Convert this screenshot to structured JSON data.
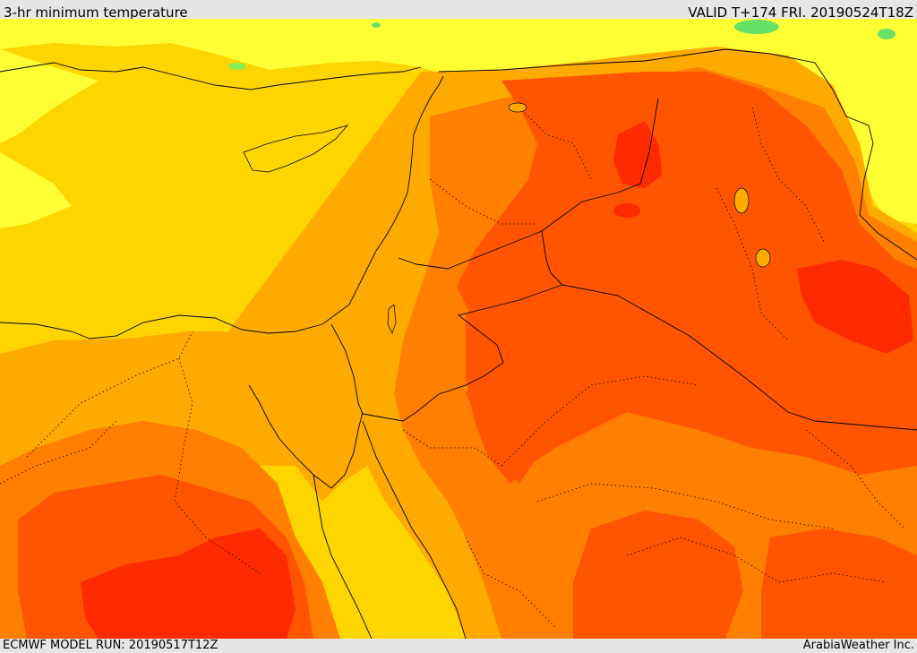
{
  "header": {
    "title": "3-hr minimum temperature",
    "valid": "VALID T+174 FRI. 20190524T18Z"
  },
  "footer": {
    "model_run": "ECMWF MODEL RUN: 20190517T12Z",
    "brand": "ArabiaWeather Inc."
  },
  "colors": {
    "cold_green": "#66e066",
    "light_yellow": "#ffff33",
    "yellow": "#ffd500",
    "amber": "#ffaa00",
    "orange": "#ff7f00",
    "orange_red": "#ff5500",
    "red": "#ff2a00",
    "borders": "#000000"
  }
}
